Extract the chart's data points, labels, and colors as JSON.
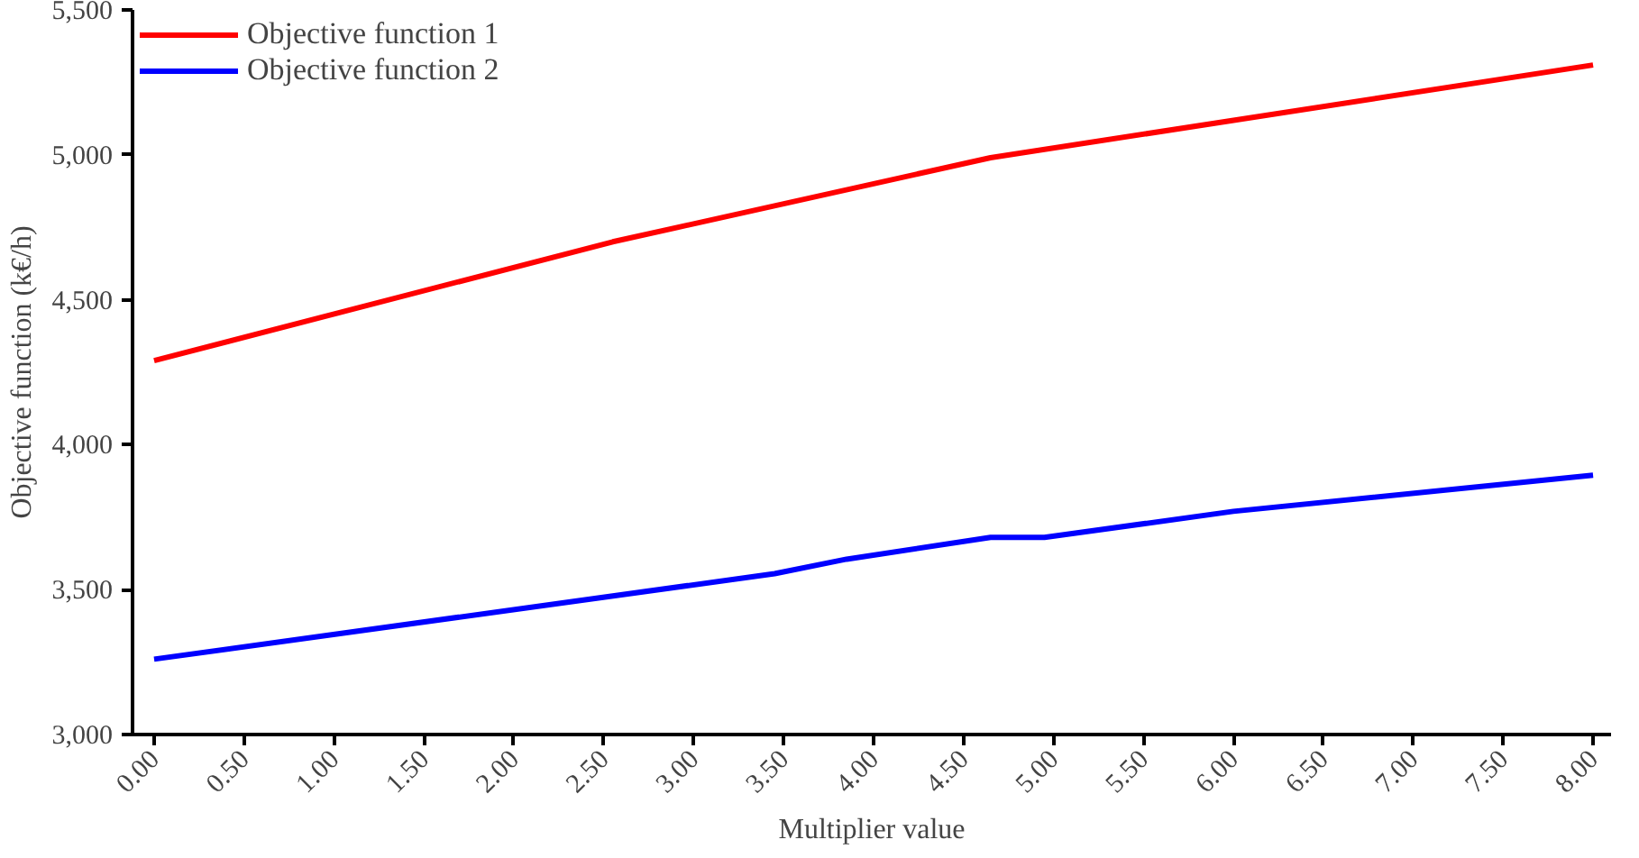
{
  "chart_data": {
    "type": "line",
    "xlabel": "Multiplier value",
    "ylabel": "Objective function (k€/h)",
    "xlim": [
      -0.12,
      8.1
    ],
    "ylim": [
      3000,
      5500
    ],
    "xticks": [
      {
        "value": 0,
        "label": "0.00"
      },
      {
        "value": 0.5,
        "label": "0.50"
      },
      {
        "value": 1,
        "label": "1.00"
      },
      {
        "value": 1.5,
        "label": "1.50"
      },
      {
        "value": 2,
        "label": "2.00"
      },
      {
        "value": 2.5,
        "label": "2.50"
      },
      {
        "value": 3,
        "label": "3.00"
      },
      {
        "value": 3.5,
        "label": "3.50"
      },
      {
        "value": 4,
        "label": "4.00"
      },
      {
        "value": 4.5,
        "label": "4.50"
      },
      {
        "value": 5,
        "label": "5.00"
      },
      {
        "value": 5.5,
        "label": "5.50"
      },
      {
        "value": 6,
        "label": "6.00"
      },
      {
        "value": 6.5,
        "label": "6.50"
      },
      {
        "value": 7,
        "label": "7.00"
      },
      {
        "value": 7.5,
        "label": "7.50"
      },
      {
        "value": 8,
        "label": "8.00"
      }
    ],
    "yticks": [
      {
        "value": 3000,
        "label": "3,000"
      },
      {
        "value": 3500,
        "label": "3,500"
      },
      {
        "value": 4000,
        "label": "4,000"
      },
      {
        "value": 4500,
        "label": "4,500"
      },
      {
        "value": 5000,
        "label": "5,000"
      },
      {
        "value": 5500,
        "label": "5,500"
      }
    ],
    "grid": false,
    "legend": "top left",
    "marker": "none",
    "line_style": "solid",
    "series": [
      {
        "name": "Objective function 1",
        "color": "#ff0000",
        "x": [
          0,
          2.55,
          4.65,
          8
        ],
        "values": [
          4290,
          4700,
          4990,
          5310
        ]
      },
      {
        "name": "Objective function 2",
        "color": "#0000ff",
        "x": [
          0,
          3.45,
          3.85,
          4.65,
          4.95,
          6,
          8
        ],
        "values": [
          3260,
          3555,
          3605,
          3680,
          3680,
          3770,
          3895
        ]
      }
    ]
  }
}
